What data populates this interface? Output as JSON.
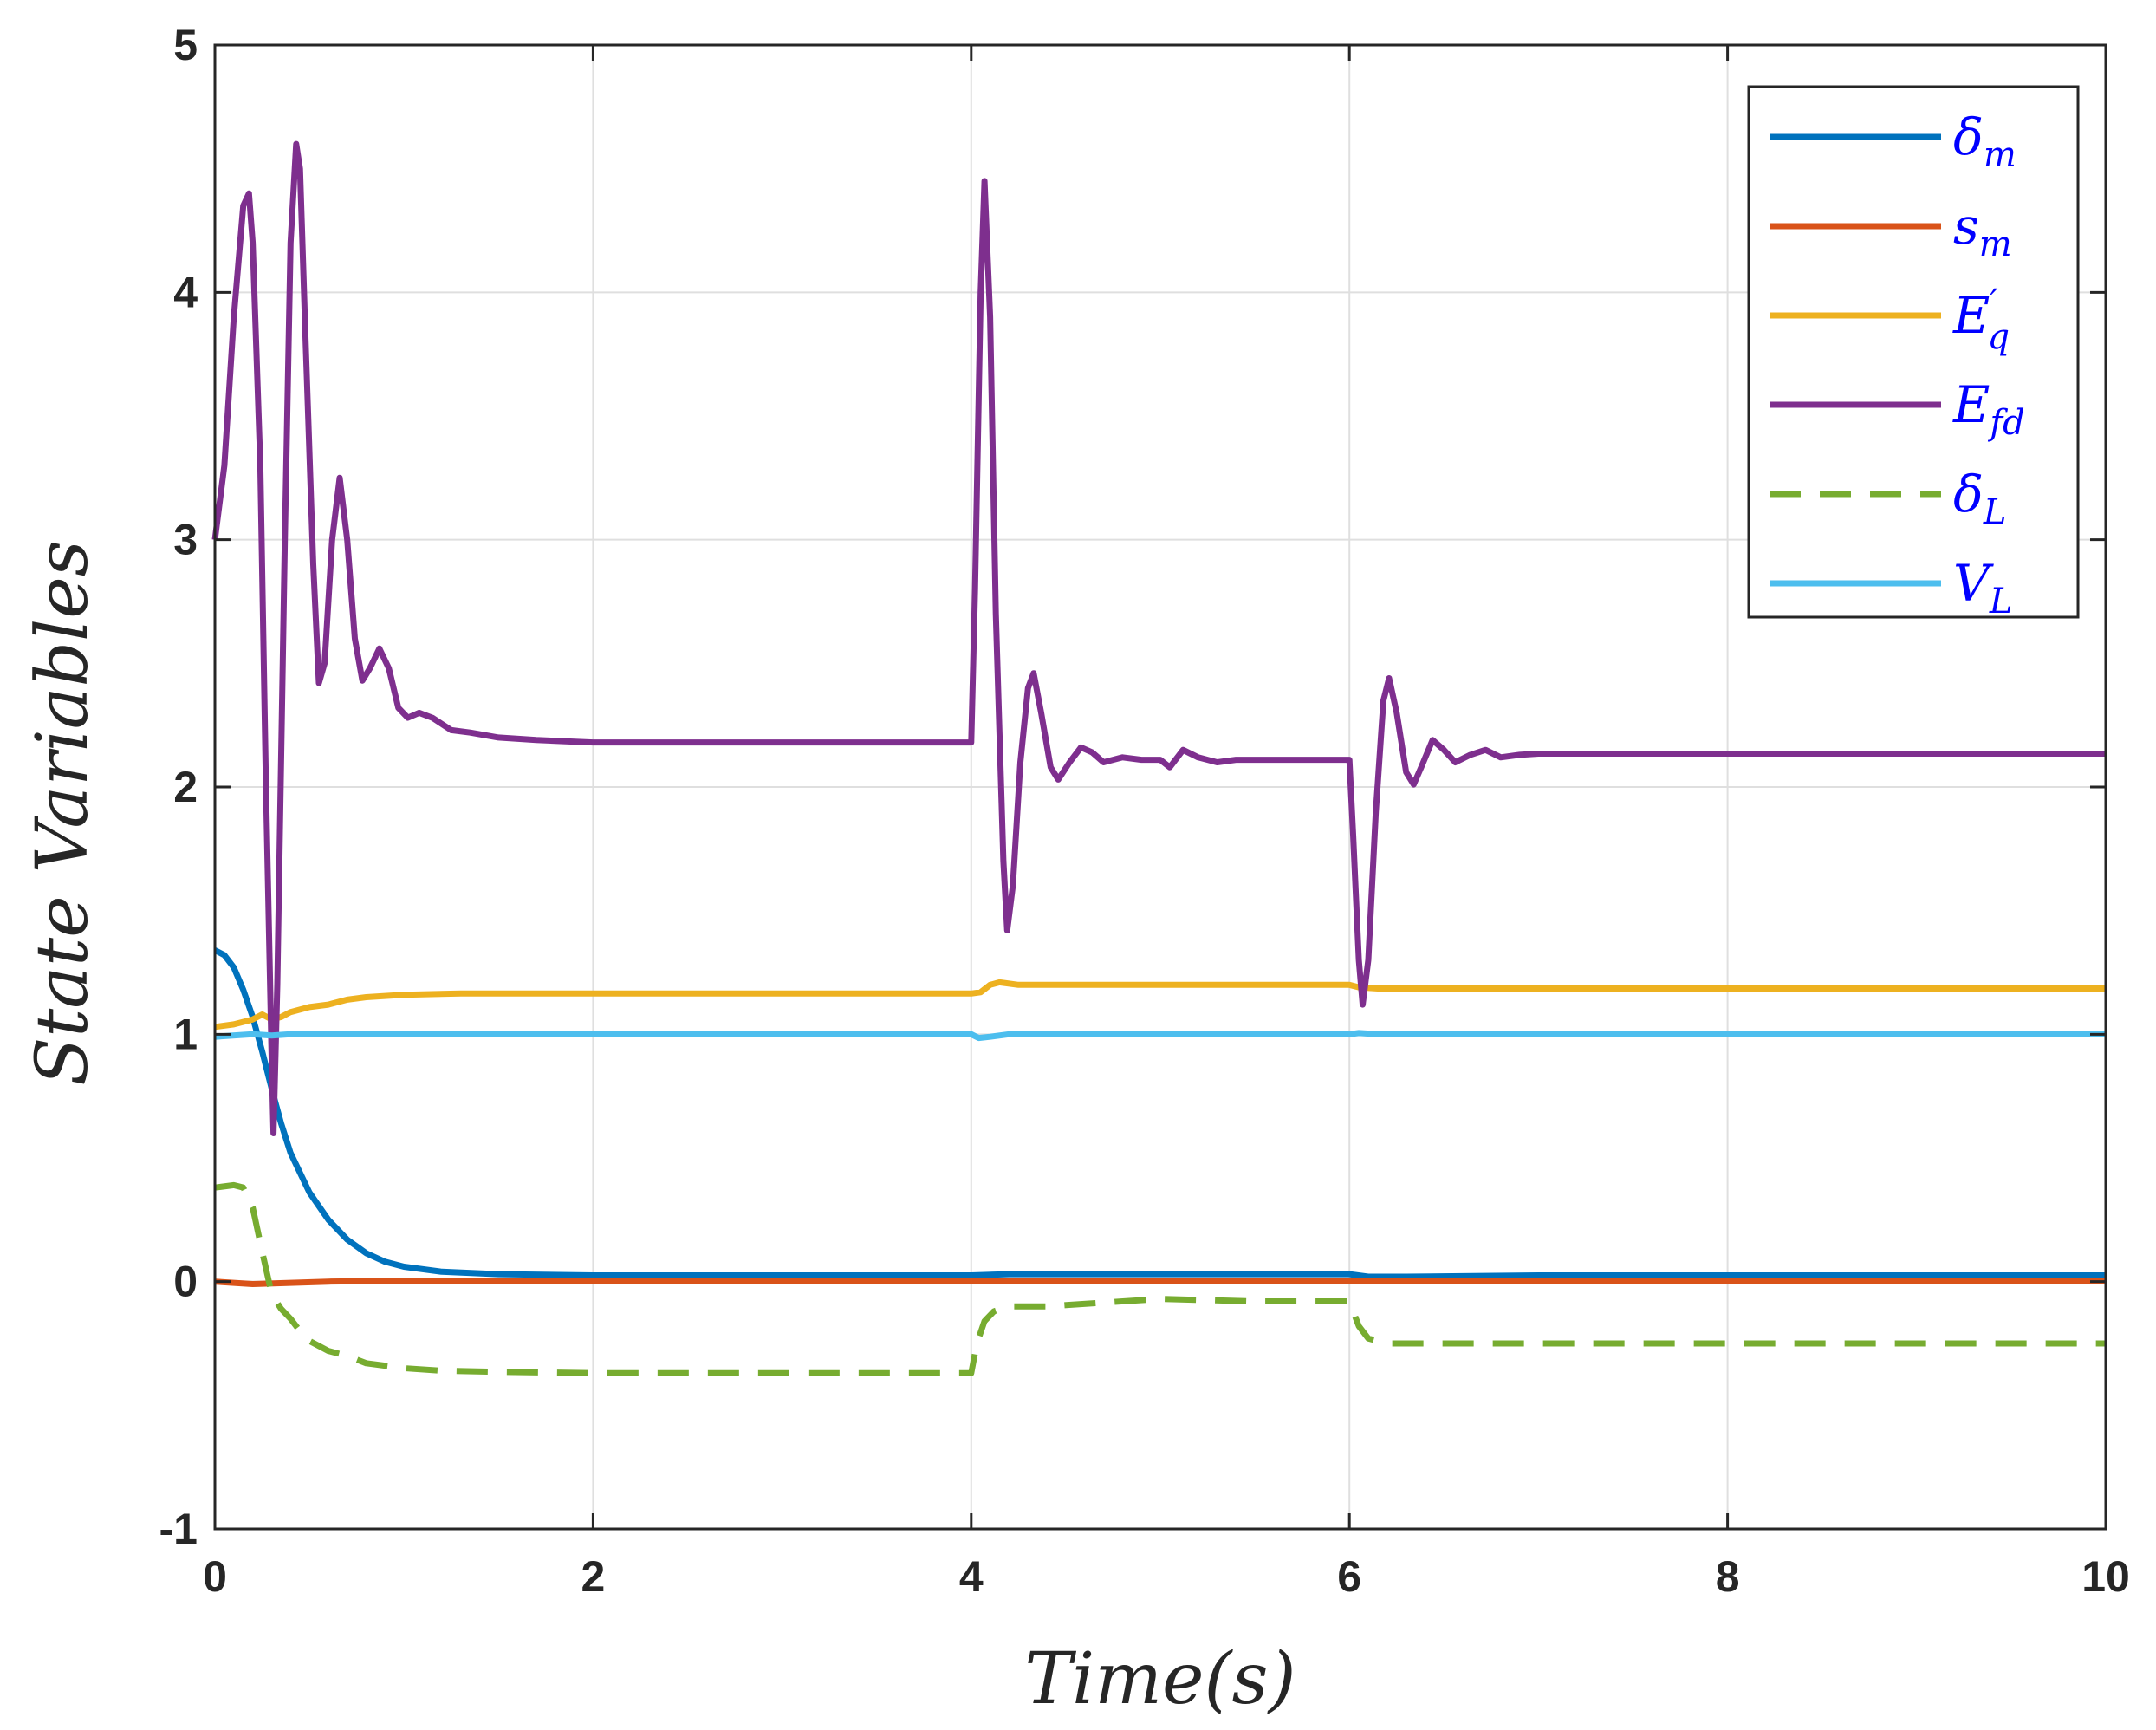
{
  "chart_data": {
    "type": "line",
    "title": "",
    "xlabel": "Time(s)",
    "ylabel": "State Variables",
    "xlim": [
      0,
      10
    ],
    "ylim": [
      -1,
      5
    ],
    "xticks": [
      "0",
      "2",
      "4",
      "6",
      "8",
      "10"
    ],
    "yticks": [
      "-1",
      "0",
      "1",
      "2",
      "3",
      "4",
      "5"
    ],
    "grid": true,
    "legend_position": "top-right",
    "series": [
      {
        "name": "δm",
        "label_main": "δ",
        "label_sub": "m",
        "label_prime": "",
        "color": "#0072BD",
        "dash": "solid",
        "points": [
          [
            0,
            1.34
          ],
          [
            0.05,
            1.32
          ],
          [
            0.1,
            1.27
          ],
          [
            0.15,
            1.18
          ],
          [
            0.2,
            1.07
          ],
          [
            0.25,
            0.93
          ],
          [
            0.3,
            0.78
          ],
          [
            0.35,
            0.64
          ],
          [
            0.4,
            0.52
          ],
          [
            0.5,
            0.36
          ],
          [
            0.6,
            0.25
          ],
          [
            0.7,
            0.17
          ],
          [
            0.8,
            0.115
          ],
          [
            0.9,
            0.08
          ],
          [
            1.0,
            0.06
          ],
          [
            1.2,
            0.04
          ],
          [
            1.5,
            0.03
          ],
          [
            2.0,
            0.025
          ],
          [
            3.0,
            0.025
          ],
          [
            4.0,
            0.025
          ],
          [
            4.2,
            0.03
          ],
          [
            4.5,
            0.03
          ],
          [
            5.0,
            0.03
          ],
          [
            6.0,
            0.03
          ],
          [
            6.1,
            0.02
          ],
          [
            6.3,
            0.02
          ],
          [
            7.0,
            0.025
          ],
          [
            8.0,
            0.025
          ],
          [
            10.0,
            0.025
          ]
        ]
      },
      {
        "name": "sm",
        "label_main": "s",
        "label_sub": "m",
        "label_prime": "",
        "color": "#D95319",
        "dash": "solid",
        "points": [
          [
            0,
            0.0
          ],
          [
            0.2,
            -0.01
          ],
          [
            0.4,
            -0.005
          ],
          [
            0.6,
            0.0
          ],
          [
            1.0,
            0.003
          ],
          [
            2.0,
            0.003
          ],
          [
            4.0,
            0.003
          ],
          [
            6.0,
            0.003
          ],
          [
            8.0,
            0.003
          ],
          [
            10.0,
            0.003
          ]
        ]
      },
      {
        "name": "E'q",
        "label_main": "E",
        "label_sub": "q",
        "label_prime": "′",
        "color": "#EDB120",
        "dash": "solid",
        "points": [
          [
            0,
            1.03
          ],
          [
            0.1,
            1.04
          ],
          [
            0.2,
            1.06
          ],
          [
            0.25,
            1.08
          ],
          [
            0.3,
            1.06
          ],
          [
            0.35,
            1.07
          ],
          [
            0.4,
            1.09
          ],
          [
            0.5,
            1.11
          ],
          [
            0.6,
            1.12
          ],
          [
            0.7,
            1.14
          ],
          [
            0.8,
            1.15
          ],
          [
            1.0,
            1.16
          ],
          [
            1.3,
            1.165
          ],
          [
            2.0,
            1.165
          ],
          [
            3.0,
            1.165
          ],
          [
            4.0,
            1.165
          ],
          [
            4.05,
            1.17
          ],
          [
            4.1,
            1.2
          ],
          [
            4.15,
            1.21
          ],
          [
            4.25,
            1.2
          ],
          [
            4.4,
            1.2
          ],
          [
            5.0,
            1.2
          ],
          [
            6.0,
            1.2
          ],
          [
            6.05,
            1.19
          ],
          [
            6.15,
            1.185
          ],
          [
            6.3,
            1.185
          ],
          [
            7.0,
            1.185
          ],
          [
            10.0,
            1.185
          ]
        ]
      },
      {
        "name": "Efd",
        "label_main": "E",
        "label_sub": "fd",
        "label_prime": "",
        "color": "#7E2F8E",
        "dash": "solid",
        "points": [
          [
            0,
            3.0
          ],
          [
            0.05,
            3.3
          ],
          [
            0.1,
            3.9
          ],
          [
            0.15,
            4.35
          ],
          [
            0.18,
            4.4
          ],
          [
            0.2,
            4.2
          ],
          [
            0.24,
            3.3
          ],
          [
            0.27,
            2.0
          ],
          [
            0.3,
            0.9
          ],
          [
            0.31,
            0.6
          ],
          [
            0.33,
            1.2
          ],
          [
            0.37,
            3.0
          ],
          [
            0.4,
            4.2
          ],
          [
            0.43,
            4.6
          ],
          [
            0.45,
            4.5
          ],
          [
            0.48,
            3.8
          ],
          [
            0.52,
            2.9
          ],
          [
            0.55,
            2.42
          ],
          [
            0.58,
            2.5
          ],
          [
            0.62,
            3.0
          ],
          [
            0.66,
            3.25
          ],
          [
            0.7,
            3.0
          ],
          [
            0.74,
            2.6
          ],
          [
            0.78,
            2.43
          ],
          [
            0.82,
            2.48
          ],
          [
            0.87,
            2.56
          ],
          [
            0.92,
            2.48
          ],
          [
            0.97,
            2.32
          ],
          [
            1.02,
            2.28
          ],
          [
            1.08,
            2.3
          ],
          [
            1.15,
            2.28
          ],
          [
            1.25,
            2.23
          ],
          [
            1.35,
            2.22
          ],
          [
            1.5,
            2.2
          ],
          [
            1.7,
            2.19
          ],
          [
            2.0,
            2.18
          ],
          [
            3.0,
            2.18
          ],
          [
            4.0,
            2.18
          ],
          [
            4.02,
            2.8
          ],
          [
            4.05,
            4.0
          ],
          [
            4.07,
            4.45
          ],
          [
            4.1,
            3.9
          ],
          [
            4.13,
            2.7
          ],
          [
            4.17,
            1.7
          ],
          [
            4.19,
            1.42
          ],
          [
            4.22,
            1.6
          ],
          [
            4.26,
            2.1
          ],
          [
            4.3,
            2.4
          ],
          [
            4.33,
            2.46
          ],
          [
            4.37,
            2.3
          ],
          [
            4.42,
            2.08
          ],
          [
            4.46,
            2.03
          ],
          [
            4.52,
            2.1
          ],
          [
            4.58,
            2.16
          ],
          [
            4.64,
            2.14
          ],
          [
            4.7,
            2.1
          ],
          [
            4.8,
            2.12
          ],
          [
            4.9,
            2.11
          ],
          [
            5.0,
            2.11
          ],
          [
            5.05,
            2.08
          ],
          [
            5.12,
            2.15
          ],
          [
            5.2,
            2.12
          ],
          [
            5.3,
            2.1
          ],
          [
            5.4,
            2.11
          ],
          [
            5.6,
            2.11
          ],
          [
            6.0,
            2.11
          ],
          [
            6.02,
            1.8
          ],
          [
            6.05,
            1.3
          ],
          [
            6.07,
            1.12
          ],
          [
            6.1,
            1.3
          ],
          [
            6.14,
            1.9
          ],
          [
            6.18,
            2.35
          ],
          [
            6.21,
            2.44
          ],
          [
            6.25,
            2.3
          ],
          [
            6.3,
            2.06
          ],
          [
            6.34,
            2.01
          ],
          [
            6.38,
            2.08
          ],
          [
            6.44,
            2.19
          ],
          [
            6.5,
            2.15
          ],
          [
            6.56,
            2.1
          ],
          [
            6.64,
            2.13
          ],
          [
            6.72,
            2.15
          ],
          [
            6.8,
            2.12
          ],
          [
            6.9,
            2.13
          ],
          [
            7.0,
            2.135
          ],
          [
            8.0,
            2.135
          ],
          [
            10.0,
            2.135
          ]
        ]
      },
      {
        "name": "δL",
        "label_main": "δ",
        "label_sub": "L",
        "label_prime": "",
        "color": "#77AC30",
        "dash": "dashed",
        "points": [
          [
            0,
            0.38
          ],
          [
            0.1,
            0.39
          ],
          [
            0.15,
            0.38
          ],
          [
            0.2,
            0.3
          ],
          [
            0.25,
            0.12
          ],
          [
            0.3,
            -0.05
          ],
          [
            0.35,
            -0.11
          ],
          [
            0.4,
            -0.15
          ],
          [
            0.45,
            -0.2
          ],
          [
            0.5,
            -0.24
          ],
          [
            0.6,
            -0.28
          ],
          [
            0.7,
            -0.3
          ],
          [
            0.8,
            -0.33
          ],
          [
            1.0,
            -0.35
          ],
          [
            1.2,
            -0.36
          ],
          [
            1.5,
            -0.365
          ],
          [
            2.0,
            -0.37
          ],
          [
            3.0,
            -0.37
          ],
          [
            4.0,
            -0.37
          ],
          [
            4.03,
            -0.25
          ],
          [
            4.07,
            -0.16
          ],
          [
            4.12,
            -0.12
          ],
          [
            4.2,
            -0.1
          ],
          [
            4.4,
            -0.1
          ],
          [
            5.0,
            -0.07
          ],
          [
            5.5,
            -0.08
          ],
          [
            6.0,
            -0.08
          ],
          [
            6.05,
            -0.18
          ],
          [
            6.1,
            -0.23
          ],
          [
            6.2,
            -0.25
          ],
          [
            6.5,
            -0.25
          ],
          [
            7.0,
            -0.25
          ],
          [
            8.0,
            -0.25
          ],
          [
            10.0,
            -0.25
          ]
        ]
      },
      {
        "name": "VL",
        "label_main": "V",
        "label_sub": "L",
        "label_prime": "",
        "color": "#4DBEEE",
        "dash": "solid",
        "points": [
          [
            0,
            0.99
          ],
          [
            0.2,
            1.0
          ],
          [
            0.3,
            0.995
          ],
          [
            0.4,
            1.0
          ],
          [
            0.6,
            1.0
          ],
          [
            1.0,
            1.0
          ],
          [
            2.0,
            1.0
          ],
          [
            4.0,
            1.0
          ],
          [
            4.04,
            0.985
          ],
          [
            4.1,
            0.99
          ],
          [
            4.2,
            1.0
          ],
          [
            5.0,
            1.0
          ],
          [
            6.0,
            1.0
          ],
          [
            6.05,
            1.005
          ],
          [
            6.15,
            1.0
          ],
          [
            7.0,
            1.0
          ],
          [
            10.0,
            1.0
          ]
        ]
      }
    ]
  }
}
